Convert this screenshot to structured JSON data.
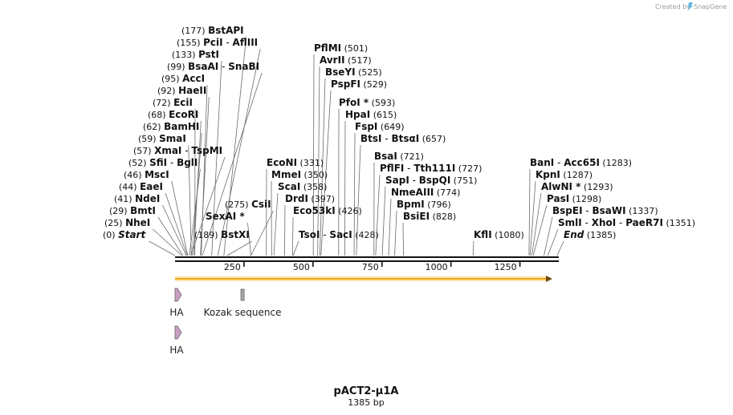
{
  "title": "pACT2-μ1A",
  "length_label": "1385 bp",
  "credit_text": "Created by",
  "credit_brand": "SnapGene",
  "colors": {
    "orf": "#f0a51c",
    "orf_fill": "#fbe3a8",
    "feature": "#c9a0c4",
    "kozak": "#a8a8a8",
    "line": "#222222"
  },
  "axis": {
    "length": 1385,
    "ticks": [
      250,
      500,
      750,
      1000,
      1250
    ],
    "tick_labels": [
      "250",
      "500",
      "750",
      "1000",
      "1250"
    ]
  },
  "enzymes": [
    {
      "parts": [
        "BstAPI"
      ],
      "pos": "(177)",
      "site": 177,
      "side": "left"
    },
    {
      "parts": [
        "PciI",
        "AflIII"
      ],
      "pos": "(155)",
      "site": 155,
      "side": "left"
    },
    {
      "parts": [
        "PstI"
      ],
      "pos": "(133)",
      "site": 133,
      "side": "left"
    },
    {
      "parts": [
        "BsaAI",
        "SnaBI"
      ],
      "pos": "(99)",
      "site": 99,
      "side": "left"
    },
    {
      "parts": [
        "AccI"
      ],
      "pos": "(95)",
      "site": 95,
      "side": "left"
    },
    {
      "parts": [
        "HaeII"
      ],
      "pos": "(92)",
      "site": 92,
      "side": "left"
    },
    {
      "parts": [
        "EciI"
      ],
      "pos": "(72)",
      "site": 72,
      "side": "left"
    },
    {
      "parts": [
        "EcoRI"
      ],
      "pos": "(68)",
      "site": 68,
      "side": "left"
    },
    {
      "parts": [
        "BamHI"
      ],
      "pos": "(62)",
      "site": 62,
      "side": "left"
    },
    {
      "parts": [
        "SmaI"
      ],
      "pos": "(59)",
      "site": 59,
      "side": "left"
    },
    {
      "parts": [
        "XmaI",
        "TspMI"
      ],
      "pos": "(57)",
      "site": 57,
      "side": "left"
    },
    {
      "parts": [
        "SfiI",
        "BglI"
      ],
      "pos": "(52)",
      "site": 52,
      "side": "left"
    },
    {
      "parts": [
        "MscI"
      ],
      "pos": "(46)",
      "site": 46,
      "side": "left"
    },
    {
      "parts": [
        "EaeI"
      ],
      "pos": "(44)",
      "site": 44,
      "side": "left"
    },
    {
      "parts": [
        "NdeI"
      ],
      "pos": "(41)",
      "site": 41,
      "side": "left"
    },
    {
      "parts": [
        "BmtI"
      ],
      "pos": "(29)",
      "site": 29,
      "side": "left"
    },
    {
      "parts": [
        "NheI"
      ],
      "pos": "(25)",
      "site": 25,
      "side": "left"
    },
    {
      "parts": [
        "Start"
      ],
      "pos": "(0)",
      "site": 0,
      "side": "left",
      "italic": true
    },
    {
      "parts": [
        "CsiI"
      ],
      "pos": "(275)",
      "site": 275,
      "side": "left"
    },
    {
      "parts": [
        "SexAI *"
      ],
      "pos": "",
      "site": 275,
      "side": "left"
    },
    {
      "parts": [
        "BstXI"
      ],
      "pos": "(189)",
      "site": 189,
      "side": "left"
    },
    {
      "parts": [
        "PflMI"
      ],
      "pos": "(501)",
      "site": 501,
      "side": "right"
    },
    {
      "parts": [
        "AvrII"
      ],
      "pos": "(517)",
      "site": 517,
      "side": "right"
    },
    {
      "parts": [
        "BseYI"
      ],
      "pos": "(525)",
      "site": 525,
      "side": "right"
    },
    {
      "parts": [
        "PspFI"
      ],
      "pos": "(529)",
      "site": 529,
      "side": "right"
    },
    {
      "parts": [
        "PfoI *"
      ],
      "pos": "(593)",
      "site": 593,
      "side": "right"
    },
    {
      "parts": [
        "HpaI"
      ],
      "pos": "(615)",
      "site": 615,
      "side": "right"
    },
    {
      "parts": [
        "FspI"
      ],
      "pos": "(649)",
      "site": 649,
      "side": "right"
    },
    {
      "parts": [
        "BtsI",
        "BtsαI"
      ],
      "pos": "(657)",
      "site": 657,
      "side": "right"
    },
    {
      "parts": [
        "EcoNI"
      ],
      "pos": "(331)",
      "site": 331,
      "side": "right"
    },
    {
      "parts": [
        "MmeI"
      ],
      "pos": "(350)",
      "site": 350,
      "side": "right"
    },
    {
      "parts": [
        "ScaI"
      ],
      "pos": "(358)",
      "site": 358,
      "side": "right"
    },
    {
      "parts": [
        "DrdI"
      ],
      "pos": "(397)",
      "site": 397,
      "side": "right"
    },
    {
      "parts": [
        "Eco53kI"
      ],
      "pos": "(426)",
      "site": 426,
      "side": "right"
    },
    {
      "parts": [
        "TsoI",
        "SacI"
      ],
      "pos": "(428)",
      "site": 428,
      "side": "right"
    },
    {
      "parts": [
        "BsaI"
      ],
      "pos": "(721)",
      "site": 721,
      "side": "right"
    },
    {
      "parts": [
        "PflFI",
        "Tth111I"
      ],
      "pos": "(727)",
      "site": 727,
      "side": "right"
    },
    {
      "parts": [
        "SapI",
        "BspQI"
      ],
      "pos": "(751)",
      "site": 751,
      "side": "right"
    },
    {
      "parts": [
        "NmeAIII"
      ],
      "pos": "(774)",
      "site": 774,
      "side": "right"
    },
    {
      "parts": [
        "BpmI"
      ],
      "pos": "(796)",
      "site": 796,
      "side": "right"
    },
    {
      "parts": [
        "BsiEI"
      ],
      "pos": "(828)",
      "site": 828,
      "side": "right"
    },
    {
      "parts": [
        "KflI"
      ],
      "pos": "(1080)",
      "site": 1080,
      "side": "right"
    },
    {
      "parts": [
        "BanI",
        "Acc65I"
      ],
      "pos": "(1283)",
      "site": 1283,
      "side": "right"
    },
    {
      "parts": [
        "KpnI"
      ],
      "pos": "(1287)",
      "site": 1287,
      "side": "right"
    },
    {
      "parts": [
        "AlwNI *"
      ],
      "pos": "(1293)",
      "site": 1293,
      "side": "right"
    },
    {
      "parts": [
        "PasI"
      ],
      "pos": "(1298)",
      "site": 1298,
      "side": "right"
    },
    {
      "parts": [
        "BspEI",
        "BsaWI"
      ],
      "pos": "(1337)",
      "site": 1337,
      "side": "right"
    },
    {
      "parts": [
        "SmlI",
        "XhoI",
        "PaeR7I"
      ],
      "pos": "(1351)",
      "site": 1351,
      "side": "right"
    },
    {
      "parts": [
        "End"
      ],
      "pos": "(1385)",
      "site": 1385,
      "side": "right",
      "italic": true
    }
  ],
  "features": [
    {
      "label": "HA",
      "type": "arrow",
      "start": 0,
      "end": 27,
      "row": 0
    },
    {
      "label": "Kozak sequence",
      "type": "box",
      "start": 233,
      "end": 242,
      "row": 0
    },
    {
      "label": "HA",
      "type": "arrow",
      "start": 0,
      "end": 27,
      "row": 1
    }
  ],
  "orf": {
    "start": 0,
    "end": 1385
  }
}
